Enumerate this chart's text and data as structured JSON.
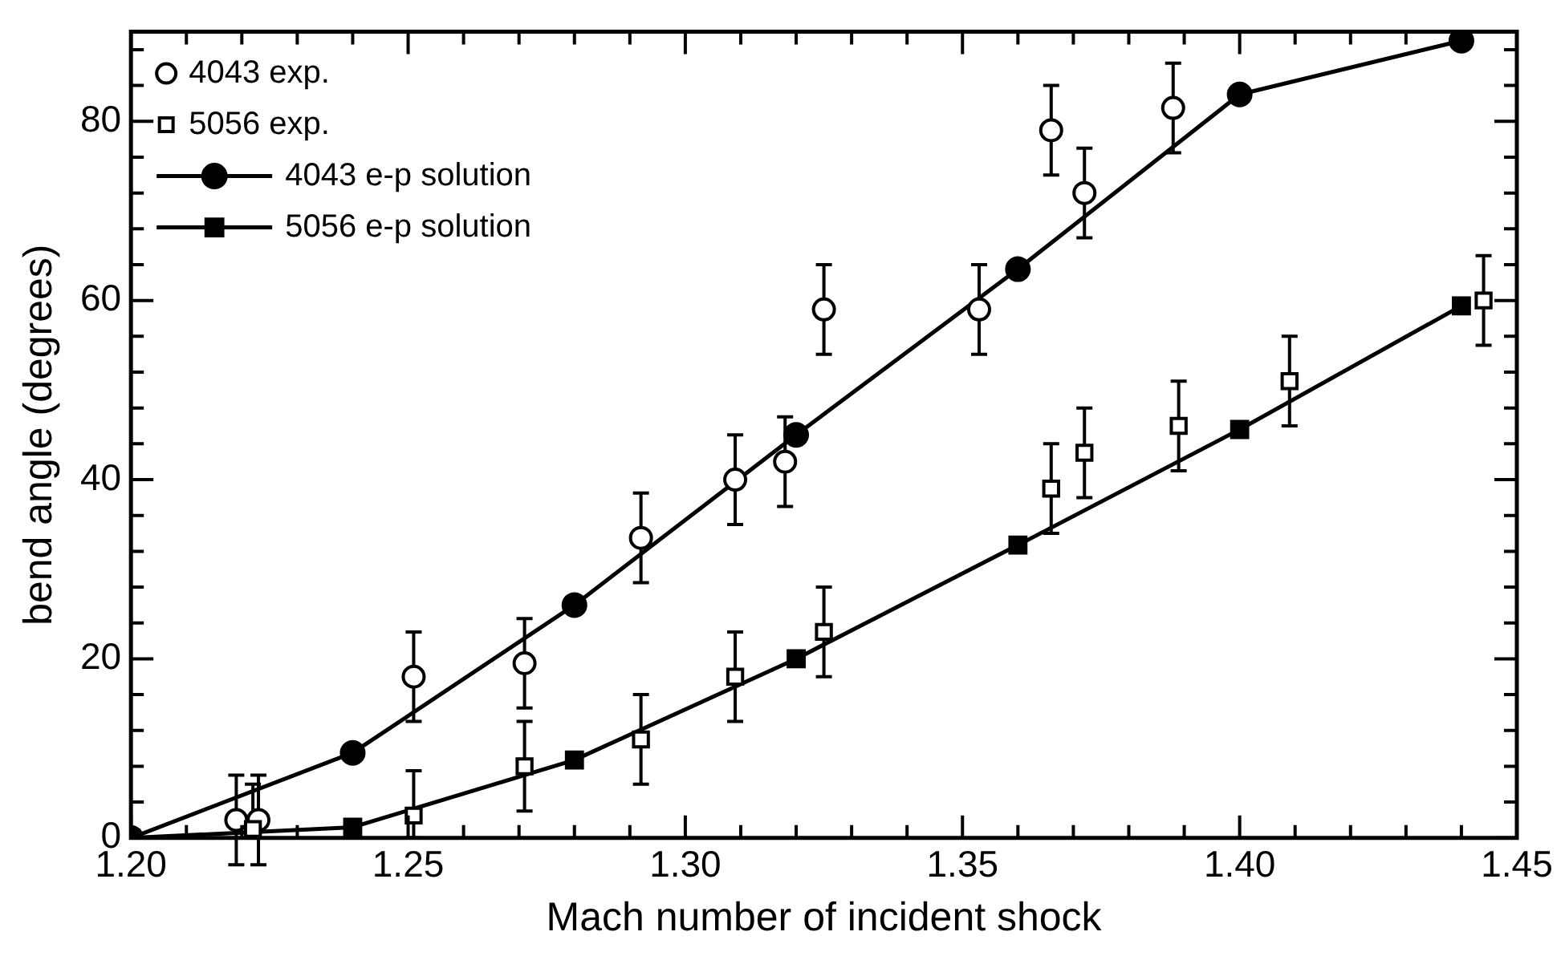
{
  "chart_data": {
    "type": "line",
    "xlabel": "Mach number of incident shock",
    "ylabel": "bend angle (degrees)",
    "xlim": [
      1.2,
      1.45
    ],
    "ylim": [
      0,
      90
    ],
    "xticks": [
      {
        "value": 1.2,
        "label": "1.20"
      },
      {
        "value": 1.21,
        "label": null
      },
      {
        "value": 1.22,
        "label": null
      },
      {
        "value": 1.23,
        "label": null
      },
      {
        "value": 1.24,
        "label": null
      },
      {
        "value": 1.25,
        "label": "1.25"
      },
      {
        "value": 1.26,
        "label": null
      },
      {
        "value": 1.27,
        "label": null
      },
      {
        "value": 1.28,
        "label": null
      },
      {
        "value": 1.29,
        "label": null
      },
      {
        "value": 1.3,
        "label": "1.30"
      },
      {
        "value": 1.31,
        "label": null
      },
      {
        "value": 1.32,
        "label": null
      },
      {
        "value": 1.33,
        "label": null
      },
      {
        "value": 1.34,
        "label": null
      },
      {
        "value": 1.35,
        "label": "1.35"
      },
      {
        "value": 1.36,
        "label": null
      },
      {
        "value": 1.37,
        "label": null
      },
      {
        "value": 1.38,
        "label": null
      },
      {
        "value": 1.39,
        "label": null
      },
      {
        "value": 1.4,
        "label": "1.40"
      },
      {
        "value": 1.41,
        "label": null
      },
      {
        "value": 1.42,
        "label": null
      },
      {
        "value": 1.43,
        "label": null
      },
      {
        "value": 1.44,
        "label": null
      },
      {
        "value": 1.45,
        "label": "1.45"
      }
    ],
    "yticks": [
      0,
      {
        "value": 4,
        "label": null
      },
      {
        "value": 8,
        "label": null
      },
      {
        "value": 12,
        "label": null
      },
      {
        "value": 16,
        "label": null
      },
      20,
      {
        "value": 24,
        "label": null
      },
      {
        "value": 28,
        "label": null
      },
      {
        "value": 32,
        "label": null
      },
      {
        "value": 36,
        "label": null
      },
      40,
      {
        "value": 44,
        "label": null
      },
      {
        "value": 48,
        "label": null
      },
      {
        "value": 52,
        "label": null
      },
      {
        "value": 56,
        "label": null
      },
      60,
      {
        "value": 64,
        "label": null
      },
      {
        "value": 68,
        "label": null
      },
      {
        "value": 72,
        "label": null
      },
      {
        "value": 76,
        "label": null
      },
      80,
      {
        "value": 84,
        "label": null
      },
      {
        "value": 88,
        "label": null
      }
    ],
    "legend": "top left",
    "line_style": "solid",
    "series": [
      {
        "name": "4043 exp.",
        "type": "scatter",
        "marker": "circle",
        "color": "#000000",
        "x": [
          1.219,
          1.223,
          1.251,
          1.271,
          1.292,
          1.309,
          1.318,
          1.325,
          1.353,
          1.366,
          1.372,
          1.388
        ],
        "values": [
          2,
          2,
          18,
          19.5,
          33.5,
          40,
          42,
          59,
          59,
          79,
          72,
          81.5
        ],
        "errors": [
          5,
          5,
          5,
          5,
          5,
          5,
          5,
          5,
          5,
          5,
          5,
          5
        ]
      },
      {
        "name": "5056 exp.",
        "type": "scatter",
        "marker": "square",
        "color": "#000000",
        "x": [
          1.222,
          1.251,
          1.271,
          1.292,
          1.309,
          1.325,
          1.366,
          1.372,
          1.389,
          1.409,
          1.444
        ],
        "values": [
          1,
          2.5,
          8,
          11,
          18,
          23,
          39,
          43,
          46,
          51,
          60
        ],
        "errors": [
          [
            0,
            6
          ],
          [
            0,
            7.5
          ],
          5,
          5,
          5,
          5,
          5,
          5,
          5,
          5,
          5
        ]
      },
      {
        "name": "4043 e-p solution",
        "type": "line",
        "marker": "circle",
        "color": "#000000",
        "x": [
          1.2,
          1.24,
          1.28,
          1.32,
          1.36,
          1.4,
          1.44
        ],
        "values": [
          0,
          9.5,
          26,
          45,
          63.5,
          83,
          89
        ]
      },
      {
        "name": "5056 e-p solution",
        "type": "line",
        "marker": "square",
        "color": "#000000",
        "x": [
          1.2,
          1.24,
          1.28,
          1.32,
          1.36,
          1.4,
          1.44
        ],
        "values": [
          0,
          1.2,
          8.7,
          20,
          32.7,
          45.6,
          59.4
        ]
      }
    ]
  }
}
